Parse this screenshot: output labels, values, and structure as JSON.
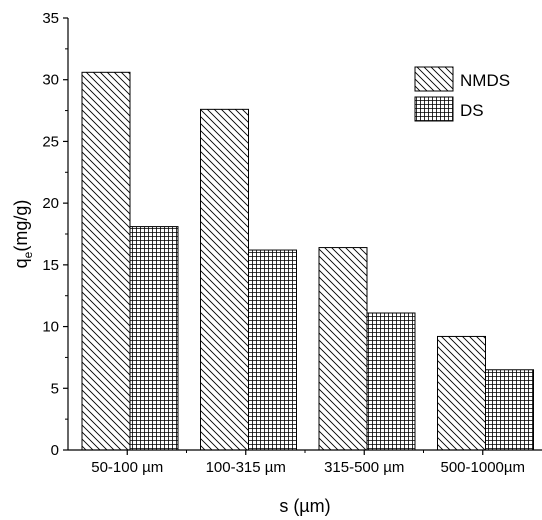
{
  "chart_data": {
    "type": "bar",
    "categories": [
      "50-100 µm",
      "100-315 µm",
      "315-500 µm",
      "500-1000µm"
    ],
    "series": [
      {
        "name": "NMDS",
        "values": [
          30.6,
          27.6,
          16.4,
          9.2
        ],
        "pattern": "diagonal-hatch"
      },
      {
        "name": "DS",
        "values": [
          18.1,
          16.2,
          11.1,
          6.5
        ],
        "pattern": "grid-hatch"
      }
    ],
    "xlabel": "s (µm)",
    "ylabel": "q",
    "ylabel_subscript": "e",
    "ylabel_suffix": "(mg/g)",
    "ylim": [
      0,
      35
    ],
    "yticks": [
      0,
      5,
      10,
      15,
      20,
      25,
      30,
      35
    ],
    "grid": false,
    "legend_position": "top-right",
    "colors": {
      "stroke": "#000000",
      "background": "#ffffff"
    }
  }
}
